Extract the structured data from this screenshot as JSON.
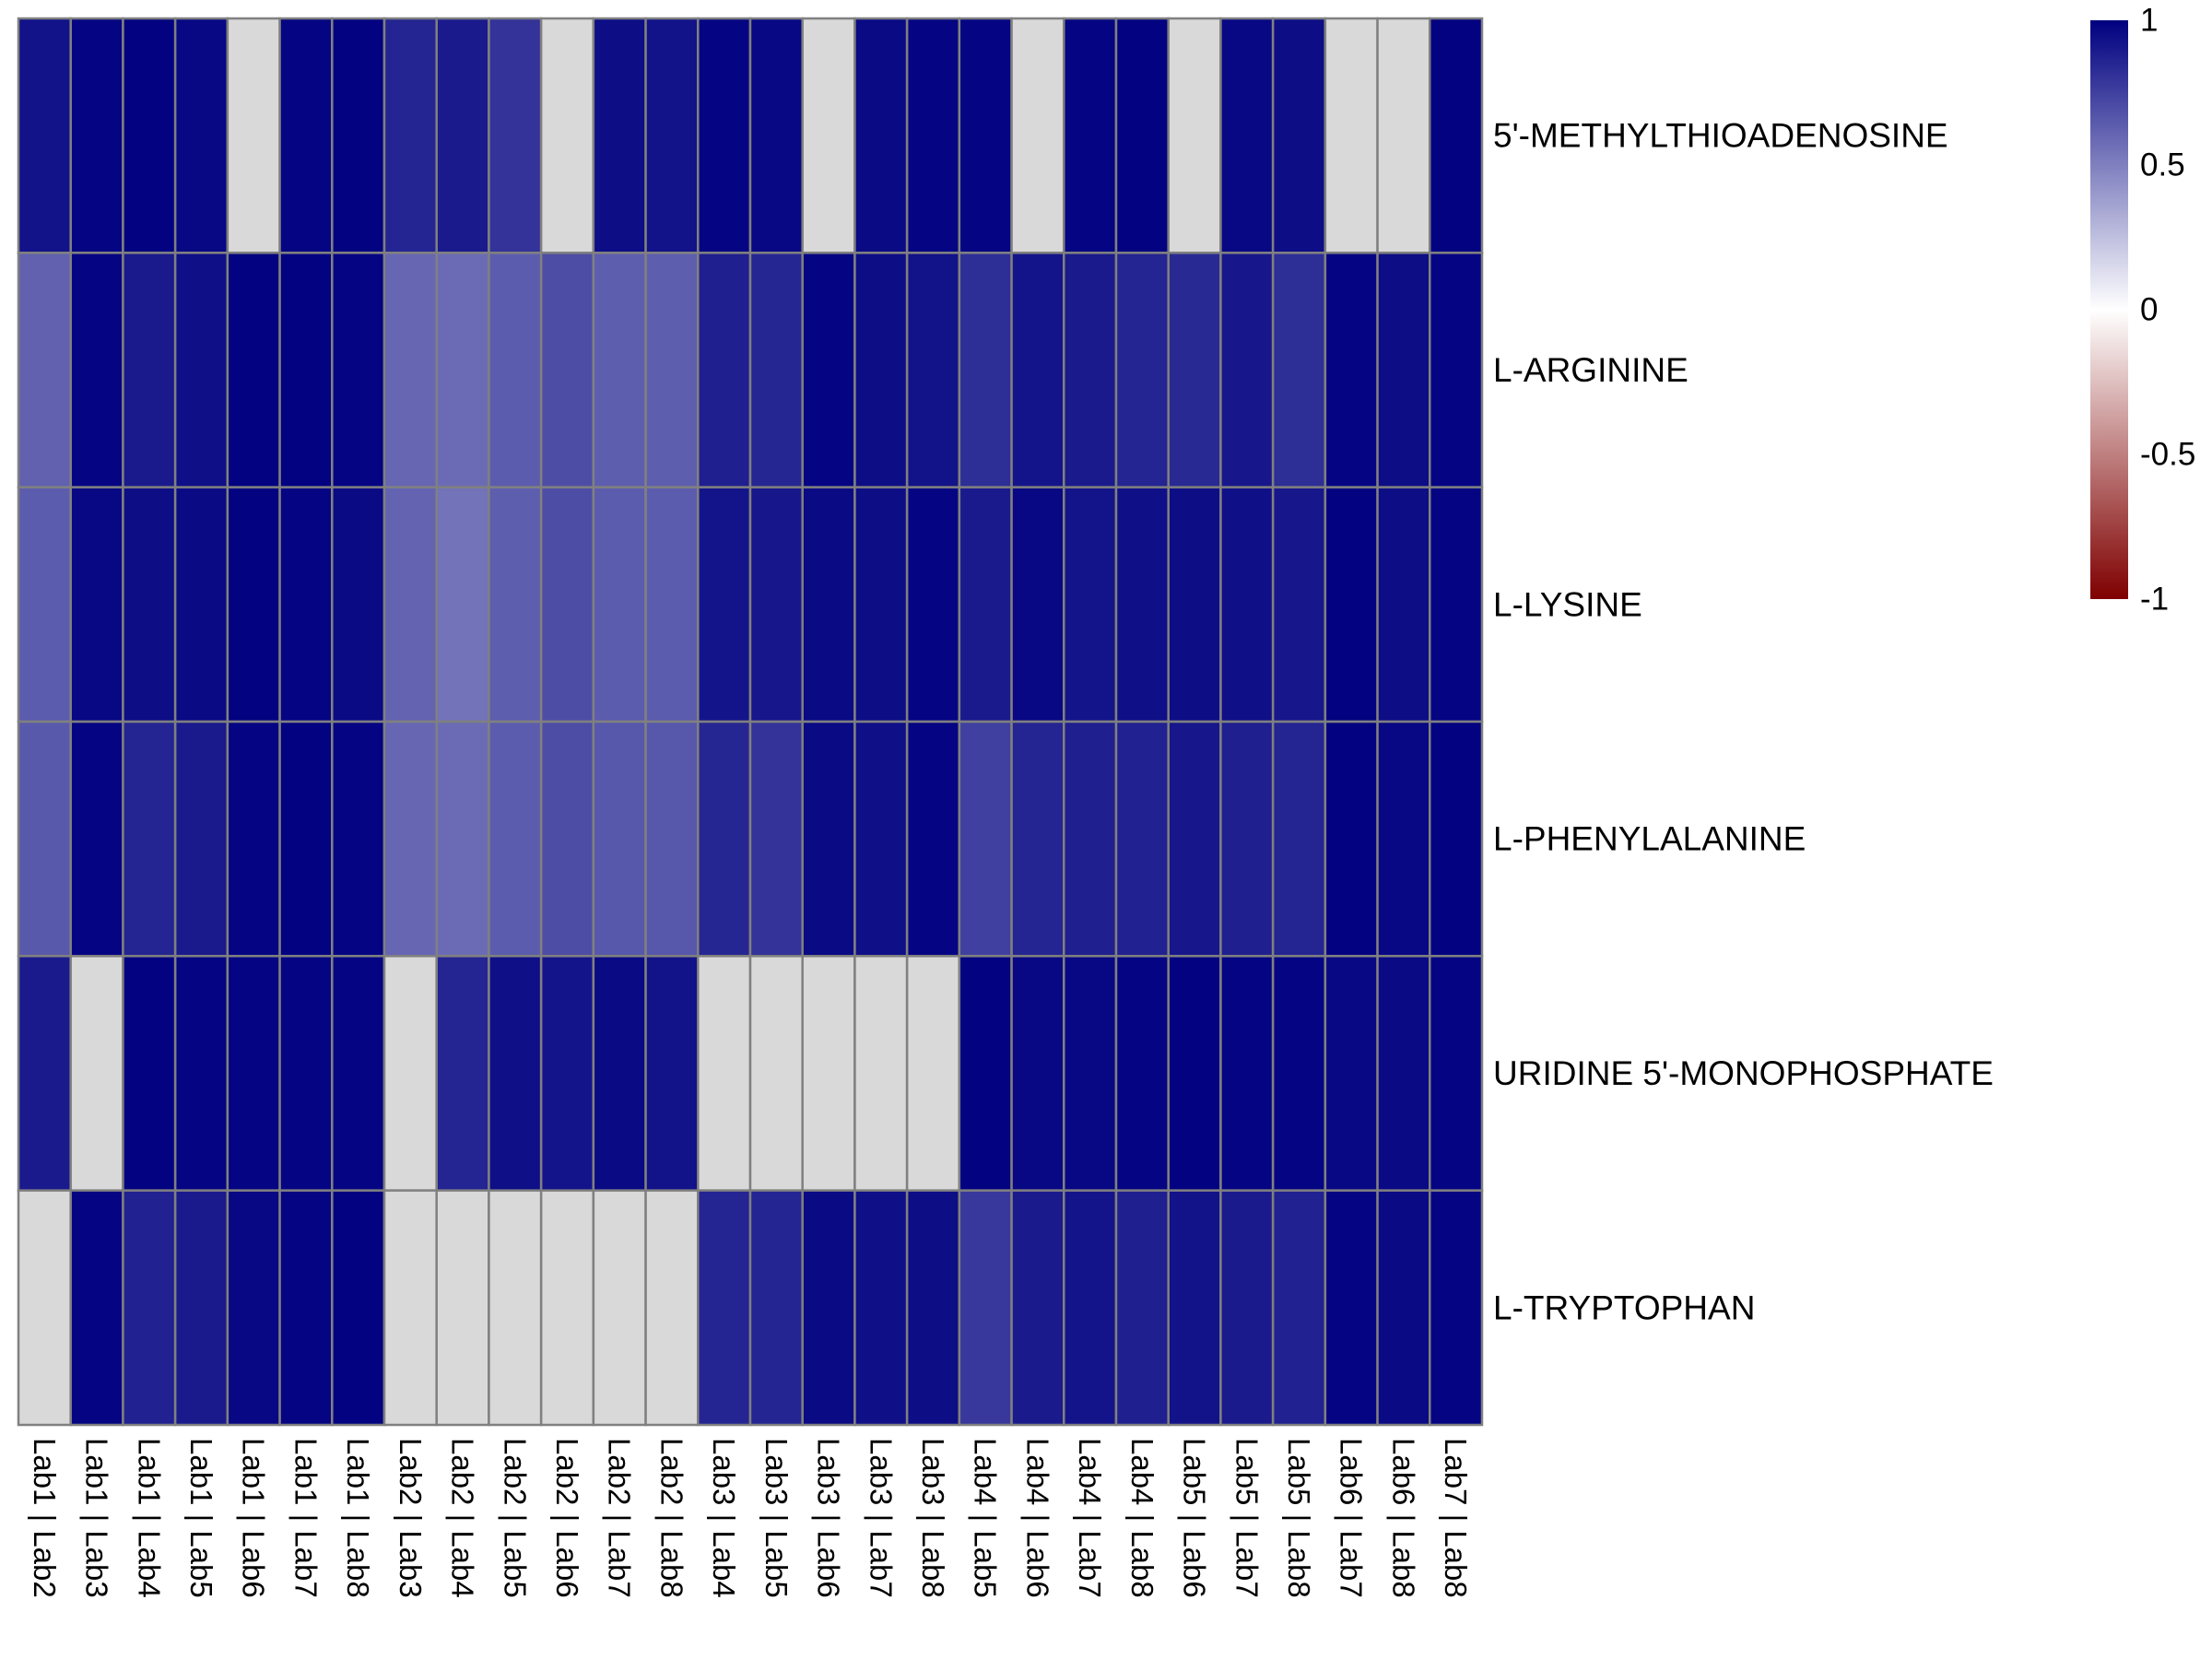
{
  "chart_data": {
    "type": "heatmap",
    "title": "",
    "xlabel": "",
    "ylabel": "",
    "rows": [
      "5'-METHYLTHIOADENOSINE",
      "L-ARGININE",
      "L-LYSINE",
      "L-PHENYLALANINE",
      "URIDINE 5'-MONOPHOSPHATE",
      "L-TRYPTOPHAN"
    ],
    "columns": [
      "Lab1 | Lab2",
      "Lab1 | Lab3",
      "Lab1 | Lab4",
      "Lab1 | Lab5",
      "Lab1 | Lab6",
      "Lab1 | Lab7",
      "Lab1 | Lab8",
      "Lab2 | Lab3",
      "Lab2 | Lab4",
      "Lab2 | Lab5",
      "Lab2 | Lab6",
      "Lab2 | Lab7",
      "Lab2 | Lab8",
      "Lab3 | Lab4",
      "Lab3 | Lab5",
      "Lab3 | Lab6",
      "Lab3 | Lab7",
      "Lab3 | Lab8",
      "Lab4 | Lab5",
      "Lab4 | Lab6",
      "Lab4 | Lab7",
      "Lab4 | Lab8",
      "Lab5 | Lab6",
      "Lab5 | Lab7",
      "Lab5 | Lab8",
      "Lab6 | Lab7",
      "Lab6 | Lab8",
      "Lab7 | Lab8"
    ],
    "values": [
      [
        0.93,
        0.98,
        0.99,
        0.97,
        null,
        0.98,
        0.99,
        0.86,
        0.9,
        0.8,
        null,
        0.95,
        0.93,
        0.98,
        0.97,
        null,
        0.96,
        0.98,
        0.98,
        null,
        0.98,
        0.99,
        null,
        0.97,
        0.95,
        null,
        null,
        0.99
      ],
      [
        0.62,
        0.98,
        0.9,
        0.94,
        0.99,
        0.99,
        0.98,
        0.6,
        0.58,
        0.64,
        0.7,
        0.63,
        0.63,
        0.88,
        0.85,
        0.98,
        0.95,
        0.93,
        0.82,
        0.92,
        0.9,
        0.86,
        0.84,
        0.91,
        0.82,
        0.98,
        0.95,
        0.98
      ],
      [
        0.64,
        0.97,
        0.95,
        0.96,
        0.99,
        0.98,
        0.96,
        0.61,
        0.55,
        0.63,
        0.7,
        0.64,
        0.64,
        0.92,
        0.91,
        0.96,
        0.95,
        0.98,
        0.9,
        0.97,
        0.92,
        0.94,
        0.95,
        0.94,
        0.91,
        0.99,
        0.95,
        0.98
      ],
      [
        0.65,
        0.98,
        0.86,
        0.9,
        0.98,
        0.99,
        0.98,
        0.6,
        0.58,
        0.64,
        0.7,
        0.66,
        0.66,
        0.85,
        0.8,
        0.96,
        0.94,
        0.98,
        0.75,
        0.86,
        0.88,
        0.87,
        0.91,
        0.88,
        0.86,
        0.99,
        0.97,
        0.99
      ],
      [
        0.9,
        null,
        0.99,
        0.98,
        0.98,
        0.98,
        0.98,
        null,
        0.86,
        0.94,
        0.92,
        0.96,
        0.93,
        null,
        null,
        null,
        null,
        null,
        0.99,
        0.97,
        0.97,
        0.98,
        0.99,
        0.98,
        0.98,
        0.97,
        0.96,
        0.98
      ],
      [
        null,
        0.98,
        0.87,
        0.9,
        0.97,
        0.98,
        0.99,
        null,
        null,
        null,
        null,
        null,
        null,
        0.86,
        0.86,
        0.96,
        0.94,
        0.95,
        0.78,
        0.9,
        0.92,
        0.88,
        0.93,
        0.9,
        0.87,
        0.98,
        0.96,
        0.98
      ]
    ],
    "color_scale": {
      "min": -1,
      "max": 1,
      "low_color": "#7f0000",
      "mid_color": "#ffffff",
      "high_color": "#000080",
      "na_color": "#d9d9d9",
      "ticks": [
        "1",
        "0.5",
        "0",
        "-0.5",
        "-1"
      ]
    },
    "grid": true,
    "border_color": "#808080",
    "legend_placement": "top-right"
  }
}
